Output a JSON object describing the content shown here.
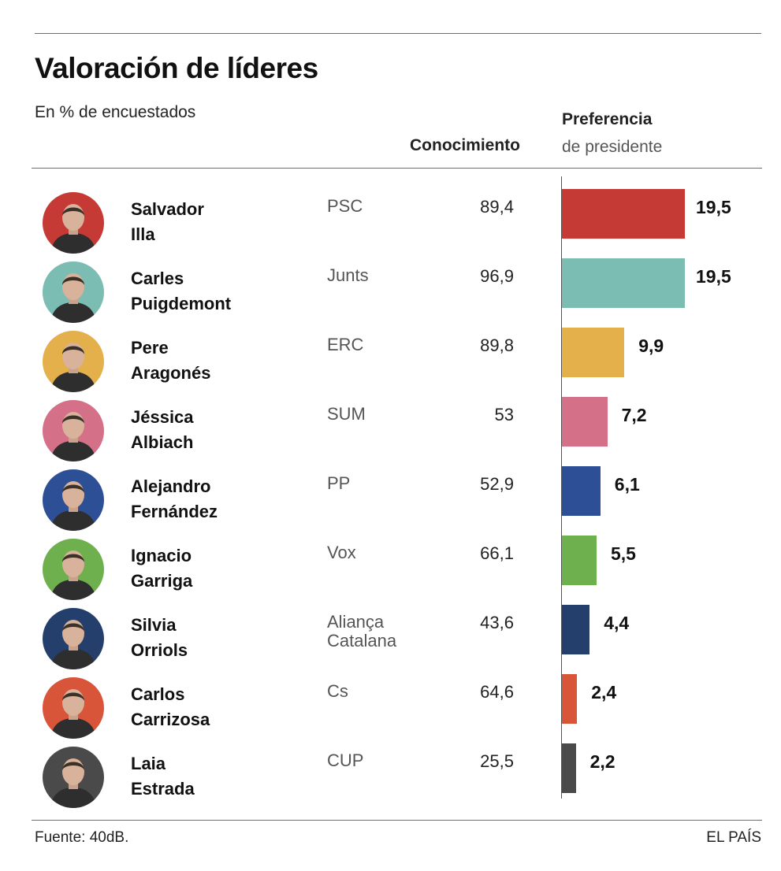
{
  "title": "Valoración de líderes",
  "subtitle": "En % de encuestados",
  "columns": {
    "knowledge": "Conocimiento",
    "preference_line1": "Preferencia",
    "preference_line2": "de presidente"
  },
  "source": "Fuente: 40dB.",
  "brand": "EL PAÍS",
  "chart_data": {
    "type": "bar",
    "orientation": "horizontal",
    "title": "Valoración de líderes",
    "subtitle": "En % de encuestados",
    "categories": [
      "Salvador Illa",
      "Carles Puigdemont",
      "Pere Aragonés",
      "Jéssica Albiach",
      "Alejandro Fernández",
      "Ignacio Garriga",
      "Silvia Orriols",
      "Carlos Carrizosa",
      "Laia Estrada"
    ],
    "series": [
      {
        "name": "Preferencia de presidente",
        "values": [
          19.5,
          19.5,
          9.9,
          7.2,
          6.1,
          5.5,
          4.4,
          2.4,
          2.2
        ]
      },
      {
        "name": "Conocimiento",
        "values": [
          89.4,
          96.9,
          89.8,
          53,
          52.9,
          66.1,
          43.6,
          64.6,
          25.5
        ]
      }
    ],
    "rows": [
      {
        "name": "Salvador\nIlla",
        "party": "PSC",
        "knowledge": "89,4",
        "preference": 19.5,
        "preference_label": "19,5",
        "color": "#c53a35",
        "avatar_bg": "#c53a35"
      },
      {
        "name": "Carles\nPuigdemont",
        "party": "Junts",
        "knowledge": "96,9",
        "preference": 19.5,
        "preference_label": "19,5",
        "color": "#7bbdb3",
        "avatar_bg": "#7bbdb3"
      },
      {
        "name": "Pere\nAragonés",
        "party": "ERC",
        "knowledge": "89,8",
        "preference": 9.9,
        "preference_label": "9,9",
        "color": "#e3b04b",
        "avatar_bg": "#e3b04b"
      },
      {
        "name": "Jéssica\nAlbiach",
        "party": "SUM",
        "knowledge": "53",
        "preference": 7.2,
        "preference_label": "7,2",
        "color": "#d57089",
        "avatar_bg": "#d57089"
      },
      {
        "name": "Alejandro\nFernández",
        "party": "PP",
        "knowledge": "52,9",
        "preference": 6.1,
        "preference_label": "6,1",
        "color": "#2c4f95",
        "avatar_bg": "#2c4f95"
      },
      {
        "name": "Ignacio\nGarriga",
        "party": "Vox",
        "knowledge": "66,1",
        "preference": 5.5,
        "preference_label": "5,5",
        "color": "#6fb04e",
        "avatar_bg": "#6fb04e"
      },
      {
        "name": "Silvia\nOrriols",
        "party": "Aliança\nCatalana",
        "knowledge": "43,6",
        "preference": 4.4,
        "preference_label": "4,4",
        "color": "#243f6c",
        "avatar_bg": "#243f6c"
      },
      {
        "name": "Carlos\nCarrizosa",
        "party": "Cs",
        "knowledge": "64,6",
        "preference": 2.4,
        "preference_label": "2,4",
        "color": "#d9553a",
        "avatar_bg": "#d9553a"
      },
      {
        "name": "Laia\nEstrada",
        "party": "CUP",
        "knowledge": "25,5",
        "preference": 2.2,
        "preference_label": "2,2",
        "color": "#4a4a4a",
        "avatar_bg": "#4a4a4a"
      }
    ],
    "xlim": [
      0,
      20
    ],
    "grid": false,
    "legend": "none"
  }
}
